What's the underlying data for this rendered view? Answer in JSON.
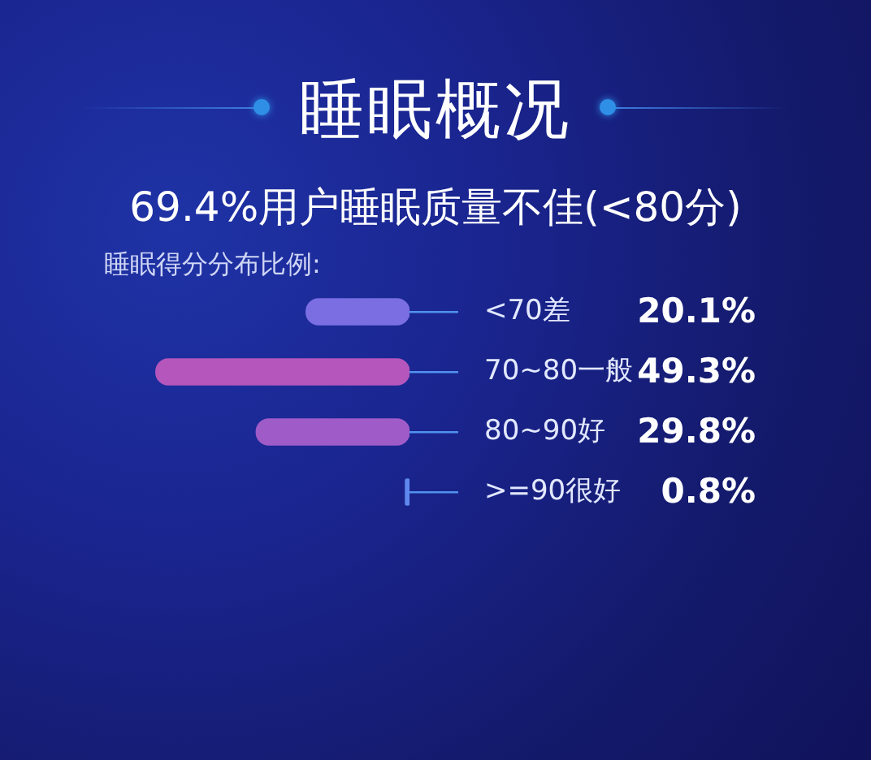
{
  "chart_data": {
    "type": "bar",
    "orientation": "horizontal",
    "title": "睡眠概况",
    "subtitle": "69.4%用户睡眠质量不佳(<80分)",
    "annotations": [
      "睡眠得分分布比例:"
    ],
    "categories": [
      "<70差",
      "70~80一般",
      "80~90好",
      ">=90很好"
    ],
    "values": [
      20.1,
      49.3,
      29.8,
      0.8
    ],
    "value_labels": [
      "20.1%",
      "49.3%",
      "29.8%",
      "0.8%"
    ],
    "colors": [
      "#7a6ee2",
      "#b556bc",
      "#9f5cc9",
      "#5f88ee"
    ]
  }
}
